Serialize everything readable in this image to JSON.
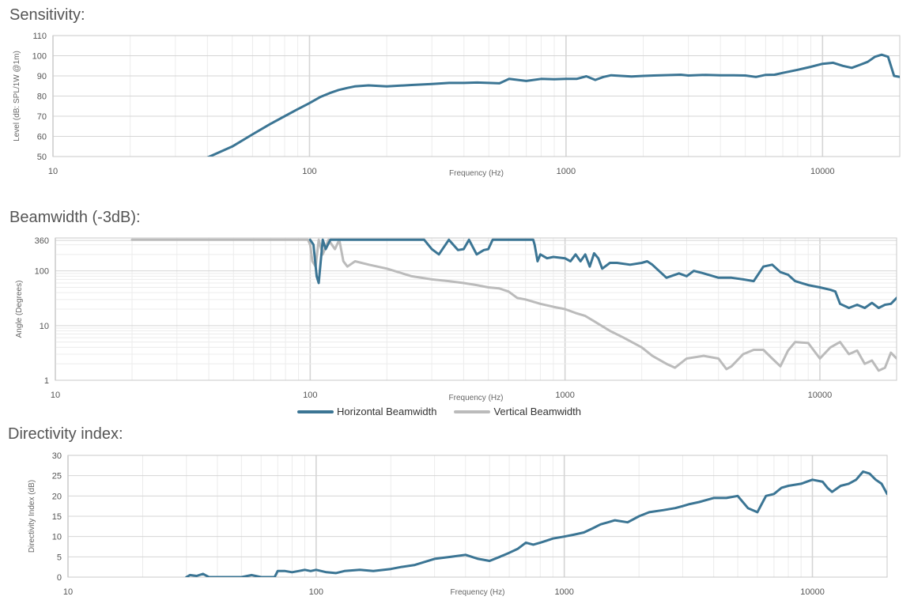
{
  "titles": {
    "sensitivity": "Sensitivity:",
    "beamwidth": "Beamwidth (-3dB):",
    "directivity": "Directivity index:"
  },
  "legend": [
    {
      "label": "Horizontal Beamwidth",
      "color": "#3b7594"
    },
    {
      "label": "Vertical Beamwidth",
      "color": "#bbbbbb"
    }
  ],
  "chart_data": [
    {
      "type": "line",
      "title": "Sensitivity:",
      "xlabel": "Frequency (Hz)",
      "ylabel": "Level (dB: SPL/1W @1m)",
      "xscale": "log",
      "xlim": [
        10,
        20000
      ],
      "ylim": [
        50,
        110
      ],
      "xticks": [
        "10",
        "100",
        "1000",
        "10000"
      ],
      "yticks": [
        "50",
        "60",
        "70",
        "80",
        "90",
        "100",
        "110"
      ],
      "series": [
        {
          "color": "#3b7594",
          "x": [
            40,
            50,
            60,
            70,
            80,
            90,
            100,
            110,
            120,
            130,
            140,
            150,
            170,
            200,
            250,
            300,
            350,
            400,
            450,
            500,
            550,
            600,
            700,
            800,
            900,
            1000,
            1100,
            1200,
            1300,
            1400,
            1500,
            1800,
            2000,
            2200,
            2500,
            2800,
            3000,
            3500,
            4000,
            4500,
            5000,
            5500,
            6000,
            6500,
            7000,
            8000,
            9000,
            10000,
            11000,
            12000,
            13000,
            14000,
            15000,
            16000,
            17000,
            18000,
            19000,
            20000
          ],
          "y": [
            49.5,
            55,
            61,
            66,
            70,
            73.5,
            76.5,
            79.5,
            81.5,
            83,
            84,
            84.8,
            85.3,
            84.8,
            85.5,
            86,
            86.5,
            86.5,
            86.7,
            86.5,
            86.3,
            88.5,
            87.5,
            88.5,
            88.3,
            88.5,
            88.5,
            89.8,
            88,
            89.5,
            90.3,
            89.7,
            90,
            90.2,
            90.4,
            90.6,
            90.2,
            90.5,
            90.3,
            90.3,
            90.2,
            89.5,
            90.5,
            90.6,
            91.5,
            93,
            94.5,
            96,
            96.5,
            95,
            94,
            95.5,
            97,
            99.5,
            100.5,
            99.5,
            90,
            89.5
          ]
        }
      ]
    },
    {
      "type": "line",
      "title": "Beamwidth (-3dB):",
      "xlabel": "Frequency (Hz)",
      "ylabel": "Angle (Degrees)",
      "xscale": "log",
      "yscale": "log",
      "xlim": [
        10,
        20000
      ],
      "ylim": [
        1,
        400
      ],
      "xticks": [
        "10",
        "100",
        "1000",
        "10000"
      ],
      "yticks": [
        "1",
        "10",
        "100",
        "360"
      ],
      "series": [
        {
          "name": "Horizontal Beamwidth",
          "color": "#3b7594",
          "x": [
            100,
            103,
            106,
            108,
            112,
            115,
            120,
            130,
            150,
            200,
            250,
            280,
            300,
            320,
            350,
            380,
            400,
            420,
            450,
            480,
            500,
            520,
            560,
            600,
            700,
            750,
            760,
            780,
            800,
            850,
            900,
            1000,
            1050,
            1100,
            1150,
            1200,
            1250,
            1300,
            1350,
            1400,
            1500,
            1600,
            1800,
            2000,
            2100,
            2200,
            2500,
            2800,
            3000,
            3200,
            3500,
            4000,
            4500,
            5000,
            5500,
            6000,
            6500,
            7000,
            7500,
            8000,
            9000,
            10000,
            11000,
            11500,
            12000,
            13000,
            14000,
            15000,
            16000,
            17000,
            18000,
            19000,
            20000
          ],
          "y": [
            370,
            300,
            80,
            60,
            370,
            250,
            370,
            370,
            370,
            370,
            370,
            370,
            250,
            200,
            370,
            240,
            250,
            370,
            200,
            240,
            250,
            370,
            370,
            370,
            370,
            370,
            300,
            150,
            200,
            170,
            180,
            170,
            150,
            200,
            150,
            200,
            120,
            210,
            170,
            110,
            140,
            140,
            130,
            140,
            150,
            130,
            75,
            90,
            80,
            100,
            90,
            75,
            75,
            70,
            65,
            120,
            130,
            95,
            85,
            65,
            55,
            50,
            45,
            42,
            25,
            21,
            24,
            21,
            26,
            21,
            24,
            25,
            32
          ]
        },
        {
          "name": "Vertical Beamwidth",
          "color": "#bbbbbb",
          "x": [
            20,
            30,
            50,
            70,
            98,
            100,
            102,
            105,
            108,
            112,
            118,
            125,
            130,
            135,
            140,
            150,
            170,
            200,
            250,
            300,
            350,
            400,
            450,
            500,
            550,
            600,
            650,
            700,
            800,
            900,
            1000,
            1100,
            1200,
            1300,
            1500,
            1700,
            2000,
            2200,
            2500,
            2700,
            3000,
            3500,
            4000,
            4300,
            4500,
            5000,
            5500,
            6000,
            6500,
            7000,
            7500,
            8000,
            9000,
            10000,
            11000,
            12000,
            13000,
            14000,
            15000,
            16000,
            17000,
            18000,
            19000,
            20000
          ],
          "y": [
            370,
            370,
            370,
            370,
            370,
            300,
            150,
            120,
            370,
            200,
            370,
            250,
            370,
            150,
            120,
            150,
            130,
            110,
            80,
            70,
            65,
            60,
            55,
            50,
            48,
            42,
            32,
            30,
            25,
            22,
            20,
            17,
            15,
            12,
            8,
            6,
            4,
            2.8,
            2,
            1.7,
            2.5,
            2.8,
            2.5,
            1.6,
            1.8,
            3,
            3.6,
            3.6,
            2.5,
            1.8,
            3.5,
            5,
            4.8,
            2.5,
            4,
            5,
            3,
            3.5,
            2,
            2.3,
            1.5,
            1.7,
            3.2,
            2.5
          ]
        }
      ]
    },
    {
      "type": "line",
      "title": "Directivity index:",
      "xlabel": "Frequency (Hz)",
      "ylabel": "Directivity Index (dB)",
      "xscale": "log",
      "xlim": [
        10,
        20000
      ],
      "ylim": [
        0,
        30
      ],
      "xticks": [
        "10",
        "100",
        "1000",
        "10000"
      ],
      "yticks": [
        "0",
        "5",
        "10",
        "15",
        "20",
        "25",
        "30"
      ],
      "series": [
        {
          "color": "#3b7594",
          "x": [
            30,
            31,
            33,
            35,
            37,
            40,
            45,
            50,
            55,
            57,
            60,
            65,
            68,
            70,
            75,
            80,
            85,
            90,
            95,
            100,
            110,
            120,
            130,
            150,
            170,
            200,
            220,
            250,
            300,
            350,
            400,
            450,
            500,
            550,
            600,
            650,
            700,
            750,
            800,
            850,
            900,
            1000,
            1100,
            1200,
            1300,
            1400,
            1500,
            1600,
            1800,
            2000,
            2200,
            2500,
            2800,
            3000,
            3200,
            3500,
            4000,
            4500,
            5000,
            5500,
            6000,
            6500,
            7000,
            7500,
            8000,
            9000,
            10000,
            11000,
            11500,
            12000,
            13000,
            14000,
            15000,
            16000,
            17000,
            18000,
            19000,
            20000
          ],
          "y": [
            0,
            0.5,
            0.3,
            0.8,
            0,
            0,
            0,
            0,
            0.5,
            0.3,
            0,
            0,
            0,
            1.5,
            1.5,
            1.2,
            1.5,
            1.8,
            1.5,
            1.8,
            1.2,
            1,
            1.5,
            1.8,
            1.5,
            2,
            2.5,
            3,
            4.5,
            5,
            5.5,
            4.5,
            4,
            5,
            6,
            7,
            8.5,
            8,
            8.5,
            9,
            9.5,
            10,
            10.5,
            11,
            12,
            13,
            13.5,
            14,
            13.5,
            15,
            16,
            16.5,
            17,
            17.5,
            18,
            18.5,
            19.5,
            19.5,
            20,
            17,
            16,
            20,
            20.5,
            22,
            22.5,
            23,
            24,
            23.5,
            22,
            21,
            22.5,
            23,
            24,
            26,
            25.5,
            24,
            23,
            20.5
          ]
        }
      ]
    }
  ]
}
